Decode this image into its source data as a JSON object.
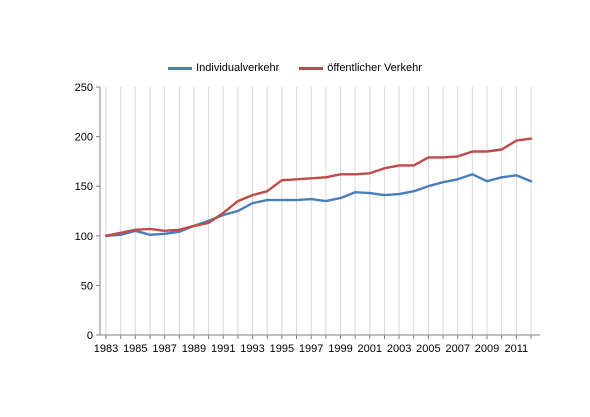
{
  "chart_data": {
    "type": "line",
    "title": "",
    "xlabel": "",
    "ylabel": "",
    "ylim": [
      0,
      250
    ],
    "yticks": [
      0,
      50,
      100,
      150,
      200,
      250
    ],
    "x": [
      1983,
      1984,
      1985,
      1986,
      1987,
      1988,
      1989,
      1990,
      1991,
      1992,
      1993,
      1994,
      1995,
      1996,
      1997,
      1998,
      1999,
      2000,
      2001,
      2002,
      2003,
      2004,
      2005,
      2006,
      2007,
      2008,
      2009,
      2010,
      2011,
      2012
    ],
    "xtick_labels": [
      "1983",
      "1985",
      "1987",
      "1989",
      "1991",
      "1993",
      "1995",
      "1997",
      "1999",
      "2001",
      "2003",
      "2005",
      "2007",
      "2009",
      "2011"
    ],
    "grid": "vertical",
    "legend_position": "top",
    "series": [
      {
        "name": "Individualverkehr",
        "color": "#4a7ebb",
        "values": [
          100,
          101,
          105,
          101,
          102,
          104,
          110,
          115,
          121,
          125,
          133,
          136,
          136,
          136,
          137,
          135,
          138,
          144,
          143,
          141,
          142,
          145,
          150,
          154,
          157,
          162,
          155,
          159,
          161,
          155
        ]
      },
      {
        "name": "öffentlicher Verkehr",
        "color": "#be4b48",
        "values": [
          100,
          103,
          106,
          107,
          105,
          106,
          110,
          113,
          123,
          135,
          141,
          145,
          156,
          157,
          158,
          159,
          162,
          162,
          163,
          168,
          171,
          171,
          179,
          179,
          180,
          185,
          185,
          187,
          196,
          198
        ]
      }
    ]
  }
}
